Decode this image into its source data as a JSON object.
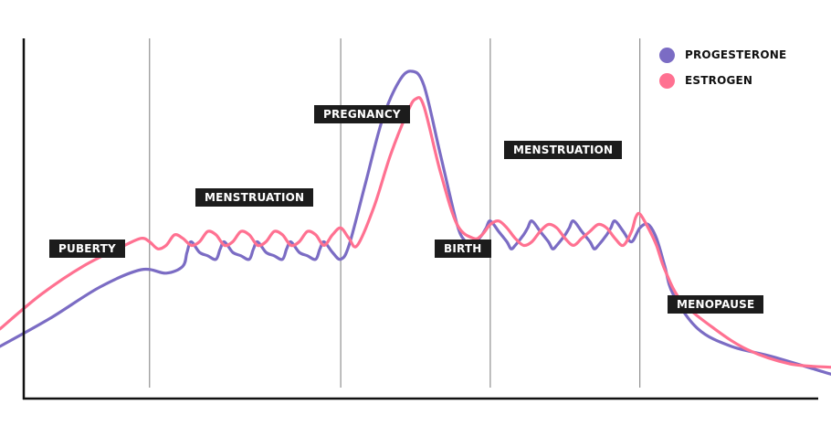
{
  "chart_data": {
    "type": "line",
    "title": "",
    "xlabel": "",
    "ylabel": "",
    "stages": [
      "PUBERTY",
      "MENSTRUATION",
      "PREGNANCY",
      "BIRTH",
      "MENSTRUATION",
      "MENOPAUSE"
    ],
    "x_domain": [
      0,
      100
    ],
    "y_domain": [
      0,
      100
    ],
    "stage_dividers_x": [
      18,
      41,
      59,
      77
    ],
    "series": [
      {
        "name": "PROGESTERONE",
        "color": "#7b6cc4",
        "points": [
          [
            0,
            15
          ],
          [
            6,
            23
          ],
          [
            12,
            32
          ],
          [
            17,
            37
          ],
          [
            20,
            36
          ],
          [
            22,
            38
          ],
          [
            22.5,
            42
          ],
          [
            23,
            45
          ],
          [
            24,
            42
          ],
          [
            25,
            41
          ],
          [
            26,
            40
          ],
          [
            26.5,
            43
          ],
          [
            27,
            45
          ],
          [
            28,
            42
          ],
          [
            29,
            41
          ],
          [
            30,
            40
          ],
          [
            30.5,
            43
          ],
          [
            31,
            45
          ],
          [
            32,
            42
          ],
          [
            33,
            41
          ],
          [
            34,
            40
          ],
          [
            34.5,
            43
          ],
          [
            35,
            45
          ],
          [
            36,
            42
          ],
          [
            37,
            41
          ],
          [
            38,
            40
          ],
          [
            38.5,
            43
          ],
          [
            39,
            45
          ],
          [
            40,
            42
          ],
          [
            41,
            40
          ],
          [
            42,
            44
          ],
          [
            44,
            62
          ],
          [
            46,
            80
          ],
          [
            48,
            91
          ],
          [
            49.5,
            94
          ],
          [
            51,
            90
          ],
          [
            53,
            70
          ],
          [
            55,
            50
          ],
          [
            56,
            45
          ],
          [
            56.5,
            43
          ],
          [
            57,
            44
          ],
          [
            58,
            47
          ],
          [
            58.5,
            49
          ],
          [
            59,
            51
          ],
          [
            60,
            48
          ],
          [
            61,
            45
          ],
          [
            61.5,
            43
          ],
          [
            62,
            44
          ],
          [
            63,
            47
          ],
          [
            63.5,
            49
          ],
          [
            64,
            51
          ],
          [
            65,
            48
          ],
          [
            66,
            45
          ],
          [
            66.5,
            43
          ],
          [
            67,
            44
          ],
          [
            68,
            47
          ],
          [
            68.5,
            49
          ],
          [
            69,
            51
          ],
          [
            70,
            48
          ],
          [
            71,
            45
          ],
          [
            71.5,
            43
          ],
          [
            72,
            44
          ],
          [
            73,
            47
          ],
          [
            73.5,
            49
          ],
          [
            74,
            51
          ],
          [
            75,
            48
          ],
          [
            76,
            45
          ],
          [
            77,
            49
          ],
          [
            78,
            50
          ],
          [
            79,
            46
          ],
          [
            80,
            38
          ],
          [
            81,
            30
          ],
          [
            84,
            20
          ],
          [
            88,
            15
          ],
          [
            93,
            12
          ],
          [
            100,
            7
          ]
        ]
      },
      {
        "name": "ESTROGEN",
        "color": "#ff7191",
        "points": [
          [
            0,
            20
          ],
          [
            5,
            30
          ],
          [
            10,
            38
          ],
          [
            15,
            44
          ],
          [
            17,
            46
          ],
          [
            18,
            45
          ],
          [
            19,
            43
          ],
          [
            20,
            44
          ],
          [
            21,
            47
          ],
          [
            22,
            46
          ],
          [
            23,
            44
          ],
          [
            24,
            45
          ],
          [
            25,
            48
          ],
          [
            26,
            47
          ],
          [
            27,
            44
          ],
          [
            28,
            45
          ],
          [
            29,
            48
          ],
          [
            30,
            47
          ],
          [
            31,
            44
          ],
          [
            32,
            45
          ],
          [
            33,
            48
          ],
          [
            34,
            47
          ],
          [
            35,
            44
          ],
          [
            36,
            45
          ],
          [
            37,
            48
          ],
          [
            38,
            47
          ],
          [
            39,
            44
          ],
          [
            40,
            47
          ],
          [
            41,
            49
          ],
          [
            42,
            46
          ],
          [
            43,
            44
          ],
          [
            45,
            55
          ],
          [
            47,
            70
          ],
          [
            49,
            82
          ],
          [
            50,
            86
          ],
          [
            51,
            84
          ],
          [
            53,
            65
          ],
          [
            55,
            50
          ],
          [
            57,
            46
          ],
          [
            58,
            47
          ],
          [
            59,
            50
          ],
          [
            60,
            51
          ],
          [
            61,
            49
          ],
          [
            62,
            46
          ],
          [
            63,
            44
          ],
          [
            64,
            45
          ],
          [
            65,
            48
          ],
          [
            66,
            50
          ],
          [
            67,
            49
          ],
          [
            68,
            46
          ],
          [
            69,
            44
          ],
          [
            70,
            46
          ],
          [
            71,
            48
          ],
          [
            72,
            50
          ],
          [
            73,
            49
          ],
          [
            74,
            46
          ],
          [
            75,
            44
          ],
          [
            76,
            48
          ],
          [
            76.5,
            52
          ],
          [
            77,
            53
          ],
          [
            78,
            49
          ],
          [
            79,
            44
          ],
          [
            80,
            37
          ],
          [
            82,
            28
          ],
          [
            86,
            20
          ],
          [
            90,
            14
          ],
          [
            95,
            10
          ],
          [
            100,
            9
          ]
        ]
      }
    ],
    "legend_position": "top-right",
    "grid": false
  },
  "labels": {
    "puberty": "PUBERTY",
    "menstruation_1": "MENSTRUATION",
    "pregnancy": "PREGNANCY",
    "birth": "BIRTH",
    "menstruation_2": "MENSTRUATION",
    "menopause": "MENOPAUSE"
  },
  "legend": {
    "progesterone": "PROGESTERONE",
    "estrogen": "ESTROGEN"
  },
  "colors": {
    "progesterone": "#7b6cc4",
    "estrogen": "#ff7191",
    "label_bg": "#1c1c1c",
    "divider": "#7a7a7a",
    "axis": "#111111"
  }
}
